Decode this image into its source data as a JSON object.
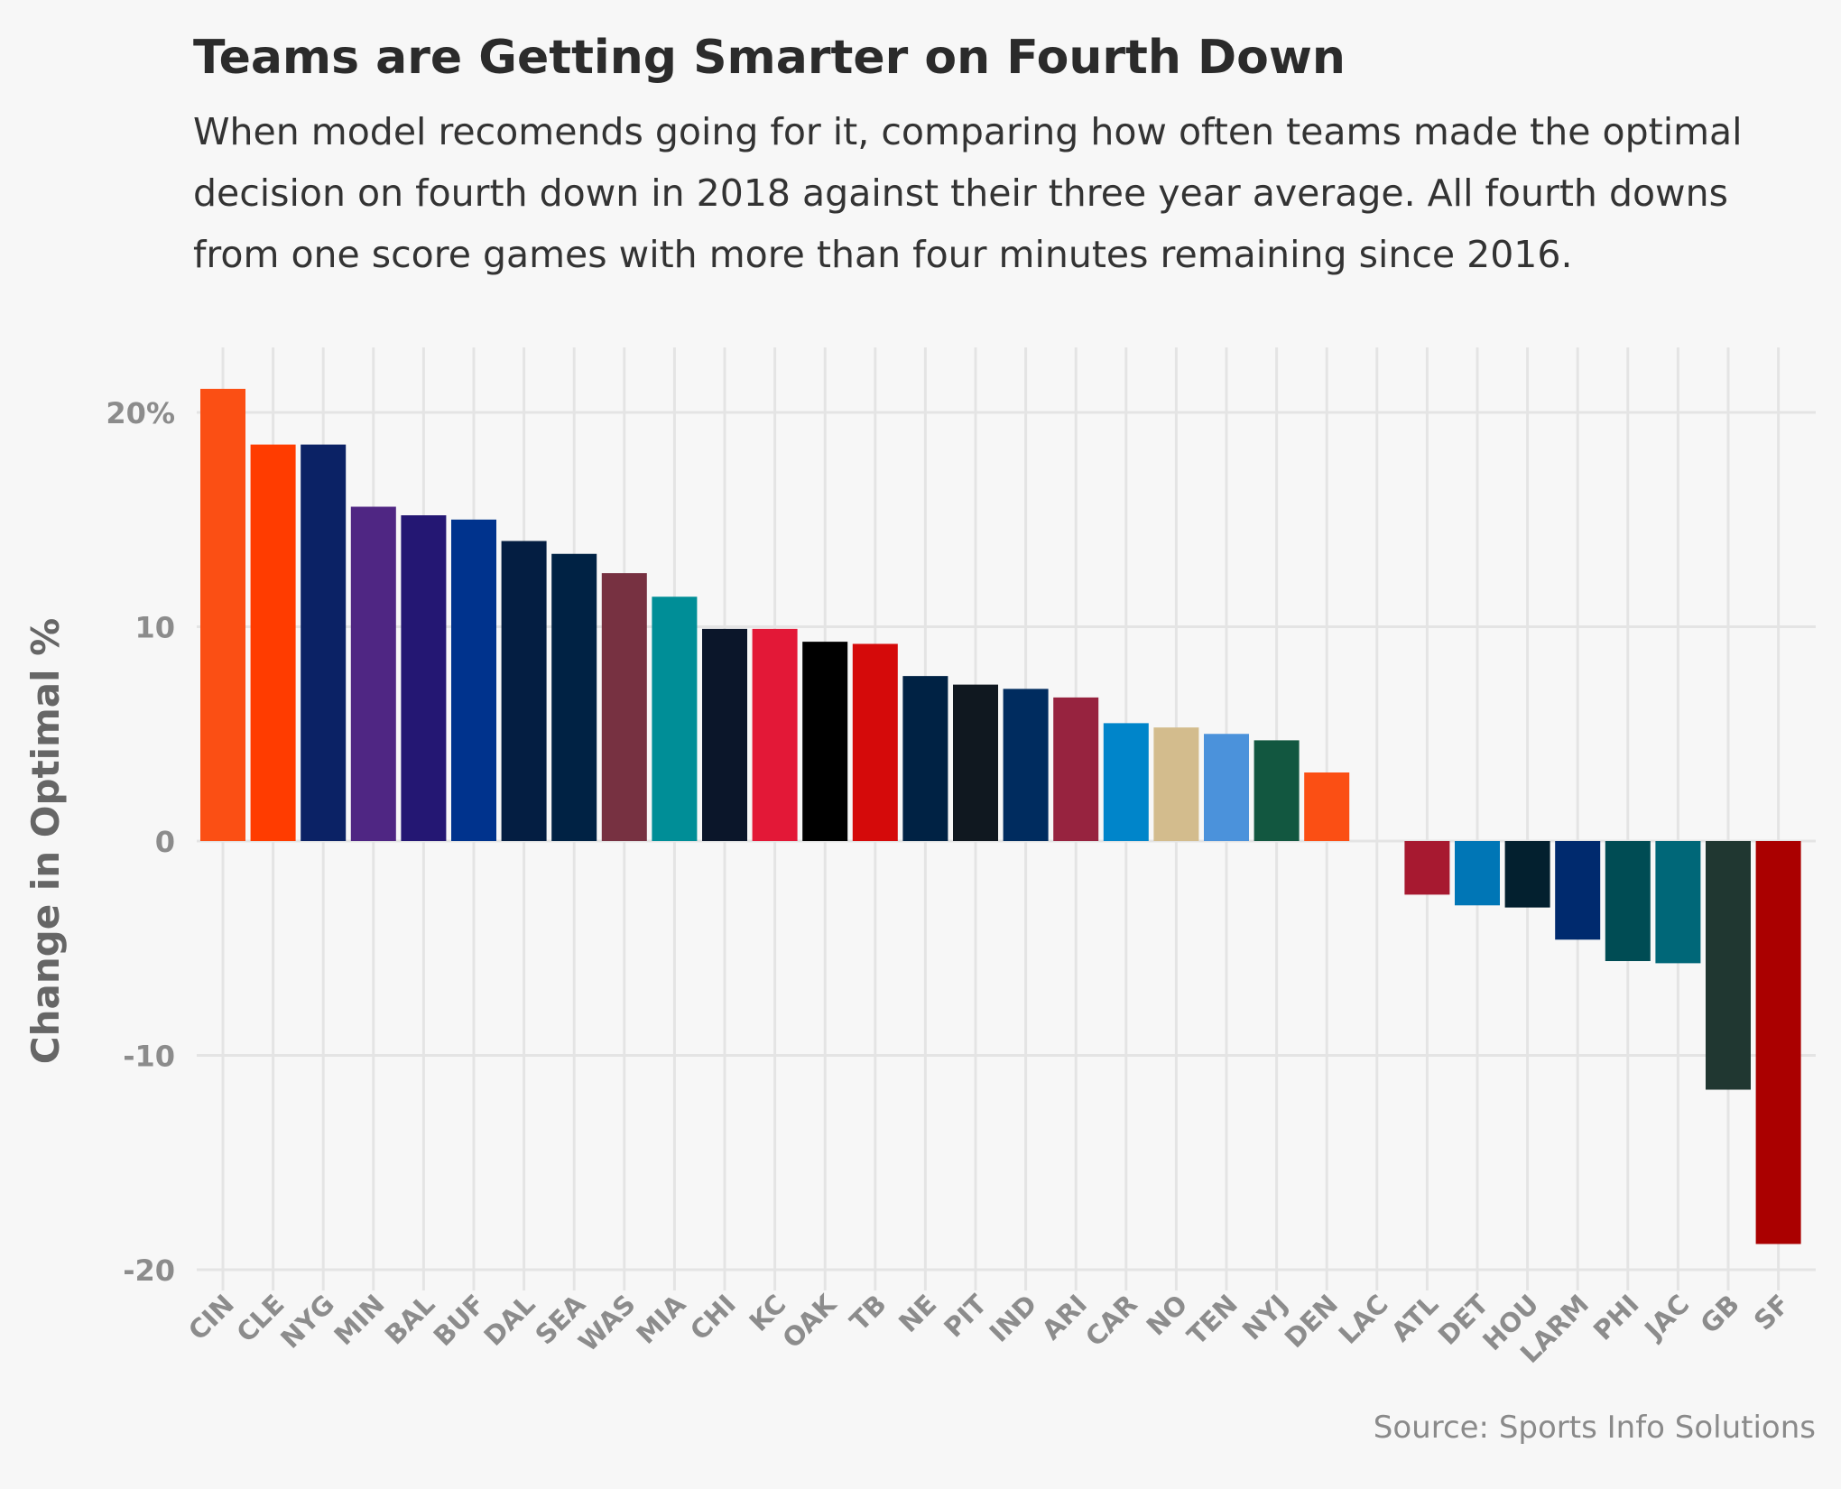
{
  "chart_data": {
    "type": "bar",
    "title": "Teams are Getting Smarter on Fourth Down",
    "subtitle": "When model recomends going for it, comparing how often teams made the optimal decision on fourth down in 2018 against their three year average. All fourth downs from one score games with more than four minutes remaining since 2016.",
    "xlabel": "",
    "ylabel": "Change in Optimal %",
    "source": "Source: Sports Info Solutions",
    "ylim": [
      -21,
      23
    ],
    "yticks": [
      {
        "value": 20,
        "label": "20%"
      },
      {
        "value": 10,
        "label": "10"
      },
      {
        "value": 0,
        "label": "0"
      },
      {
        "value": -10,
        "label": "-10"
      },
      {
        "value": -20,
        "label": "-20"
      }
    ],
    "grid": true,
    "legend": "none",
    "categories": [
      "CIN",
      "CLE",
      "NYG",
      "MIN",
      "BAL",
      "BUF",
      "DAL",
      "SEA",
      "WAS",
      "MIA",
      "CHI",
      "KC",
      "OAK",
      "TB",
      "NE",
      "PIT",
      "IND",
      "ARI",
      "CAR",
      "NO",
      "TEN",
      "NYJ",
      "DEN",
      "LAC",
      "ATL",
      "DET",
      "HOU",
      "LARM",
      "PHI",
      "JAC",
      "GB",
      "SF"
    ],
    "values": [
      21.1,
      18.5,
      18.5,
      15.6,
      15.2,
      15.0,
      14.0,
      13.4,
      12.5,
      11.4,
      9.9,
      9.9,
      9.3,
      9.2,
      7.7,
      7.3,
      7.1,
      6.7,
      5.5,
      5.3,
      5.0,
      4.7,
      3.2,
      0,
      -2.5,
      -3.0,
      -3.1,
      -4.6,
      -5.6,
      -5.7,
      -11.6,
      -18.8
    ],
    "colors": [
      "#fb4f14",
      "#ff3c00",
      "#0b2265",
      "#4f2683",
      "#241773",
      "#00338d",
      "#041e42",
      "#002244",
      "#773141",
      "#008e97",
      "#0b162a",
      "#e31837",
      "#000000",
      "#d50a0a",
      "#002244",
      "#101820",
      "#002c5f",
      "#97233f",
      "#0085ca",
      "#d3bc8d",
      "#4b92db",
      "#125740",
      "#fb4f14",
      "#0080c6",
      "#a71930",
      "#0076b6",
      "#03202f",
      "#002a6e",
      "#004c54",
      "#006778",
      "#203731",
      "#aa0000"
    ]
  }
}
